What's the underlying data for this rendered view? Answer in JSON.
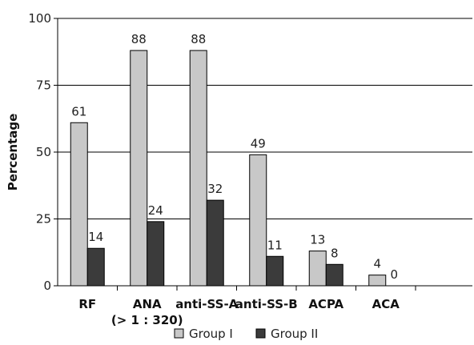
{
  "chart_data": {
    "type": "bar",
    "title": "",
    "xlabel": "",
    "ylabel": "Percentage",
    "ylim": [
      0,
      100
    ],
    "yticks": [
      "0",
      "25",
      "50",
      "75",
      "100"
    ],
    "grid": "horizontal",
    "legend_position": "bottom",
    "categories": [
      [
        "RF"
      ],
      [
        "ANA",
        "(> 1 : 320)"
      ],
      [
        "anti-SS-A"
      ],
      [
        "anti-SS-B"
      ],
      [
        "ACPA"
      ],
      [
        "ACA"
      ]
    ],
    "series": [
      {
        "name": "Group I",
        "values": [
          61,
          88,
          88,
          49,
          13,
          4
        ],
        "labels": [
          "61",
          "88",
          "88",
          "49",
          "13",
          "4"
        ],
        "color": "#c8c8c8"
      },
      {
        "name": "Group II",
        "values": [
          14,
          24,
          32,
          11,
          8,
          0
        ],
        "labels": [
          "14",
          "24",
          "32",
          "11",
          "8",
          "0"
        ],
        "color": "#3b3b3b"
      }
    ]
  }
}
